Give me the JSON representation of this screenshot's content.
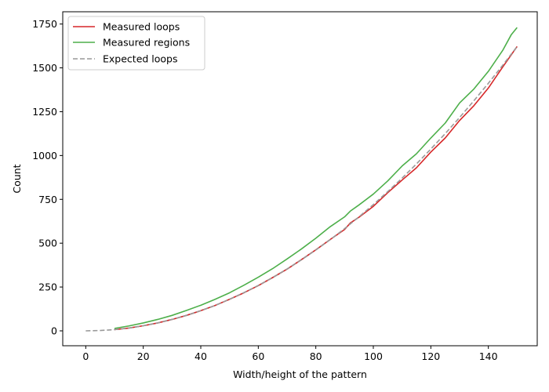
{
  "chart_data": {
    "type": "line",
    "title": "",
    "xlabel": "Width/height of the pattern",
    "ylabel": "Count",
    "xlim": [
      -8,
      157
    ],
    "ylim": [
      -85,
      1820
    ],
    "xticks": [
      0,
      20,
      40,
      60,
      80,
      100,
      120,
      140
    ],
    "yticks": [
      0,
      250,
      500,
      750,
      1000,
      1250,
      1500,
      1750
    ],
    "grid": false,
    "legend_position": "top-left",
    "series": [
      {
        "name": "Measured loops",
        "color": "#d62728",
        "style": "solid",
        "x": [
          10,
          15,
          20,
          25,
          30,
          35,
          40,
          45,
          50,
          55,
          60,
          65,
          70,
          75,
          80,
          85,
          90,
          92,
          95,
          100,
          105,
          110,
          115,
          120,
          125,
          130,
          135,
          140,
          145,
          150
        ],
        "y": [
          7,
          16,
          29,
          45,
          65,
          88,
          115,
          145,
          180,
          217,
          258,
          304,
          352,
          406,
          462,
          521,
          578,
          615,
          648,
          710,
          788,
          860,
          930,
          1020,
          1100,
          1200,
          1285,
          1385,
          1505,
          1622
        ]
      },
      {
        "name": "Measured regions",
        "color": "#4daf4a",
        "style": "solid",
        "x": [
          10,
          15,
          20,
          25,
          30,
          35,
          40,
          45,
          50,
          55,
          60,
          65,
          70,
          75,
          80,
          85,
          90,
          92,
          95,
          100,
          105,
          110,
          115,
          120,
          125,
          130,
          135,
          140,
          145,
          148,
          150
        ],
        "y": [
          14,
          28,
          45,
          65,
          88,
          116,
          146,
          180,
          217,
          260,
          306,
          355,
          410,
          467,
          528,
          594,
          650,
          683,
          718,
          780,
          855,
          940,
          1010,
          1100,
          1185,
          1300,
          1380,
          1480,
          1600,
          1690,
          1730
        ]
      },
      {
        "name": "Expected loops",
        "color": "#999999",
        "style": "dashed",
        "x": [
          0,
          5,
          10,
          15,
          20,
          25,
          30,
          35,
          40,
          45,
          50,
          55,
          60,
          65,
          70,
          75,
          80,
          85,
          90,
          95,
          100,
          105,
          110,
          115,
          120,
          125,
          130,
          135,
          140,
          145,
          150
        ],
        "y": [
          0,
          2,
          7,
          16,
          29,
          45,
          65,
          88,
          115,
          145,
          180,
          218,
          259,
          304,
          353,
          405,
          461,
          520,
          583,
          650,
          720,
          794,
          871,
          952,
          1037,
          1125,
          1217,
          1313,
          1412,
          1515,
          1622
        ]
      }
    ]
  }
}
